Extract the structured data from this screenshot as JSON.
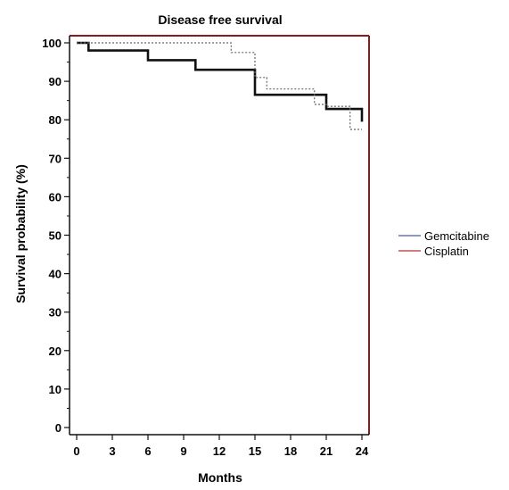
{
  "chart_data": {
    "type": "line",
    "title": "Disease free survival",
    "xlabel": "Months",
    "ylabel": "Survival probability (%)",
    "xlim": [
      0,
      24
    ],
    "ylim": [
      0,
      100
    ],
    "x_ticks": [
      0,
      3,
      6,
      9,
      12,
      15,
      18,
      21,
      24
    ],
    "y_ticks": [
      0,
      10,
      20,
      30,
      40,
      50,
      60,
      70,
      80,
      90,
      100
    ],
    "grid": false,
    "legend_position": "right",
    "series": [
      {
        "name": "Gemcitabine",
        "legend_color": "#4a5aa8",
        "color": "#111111",
        "style": "solid-bold",
        "step_points": [
          [
            0,
            100
          ],
          [
            1,
            100
          ],
          [
            1,
            98
          ],
          [
            6,
            98
          ],
          [
            6,
            95.5
          ],
          [
            10,
            95.5
          ],
          [
            10,
            93
          ],
          [
            15,
            93
          ],
          [
            15,
            86.5
          ],
          [
            21,
            86.5
          ],
          [
            21,
            82.8
          ],
          [
            24,
            82.8
          ],
          [
            24,
            79.5
          ]
        ]
      },
      {
        "name": "Cisplatin",
        "legend_color": "#b03030",
        "color": "#666666",
        "style": "dotted",
        "step_points": [
          [
            0,
            100
          ],
          [
            13,
            100
          ],
          [
            13,
            97.5
          ],
          [
            15,
            97.5
          ],
          [
            15,
            91
          ],
          [
            16,
            91
          ],
          [
            16,
            88
          ],
          [
            20,
            88
          ],
          [
            20,
            84
          ],
          [
            21,
            84
          ],
          [
            21,
            83.5
          ],
          [
            23,
            83.5
          ],
          [
            23,
            77.5
          ],
          [
            24,
            77.5
          ]
        ]
      }
    ]
  }
}
